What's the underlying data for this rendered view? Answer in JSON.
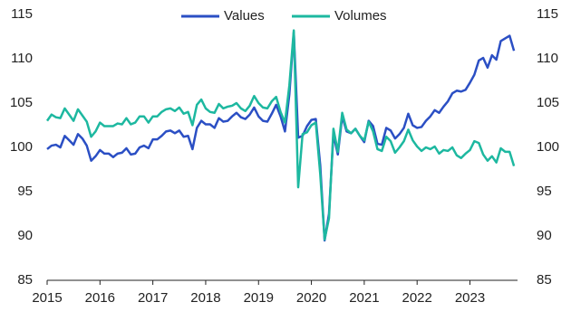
{
  "chart_data": {
    "type": "line",
    "x": [
      2015,
      2015.083,
      2015.167,
      2015.25,
      2015.333,
      2015.417,
      2015.5,
      2015.583,
      2015.667,
      2015.75,
      2015.833,
      2015.917,
      2016,
      2016.083,
      2016.167,
      2016.25,
      2016.333,
      2016.417,
      2016.5,
      2016.583,
      2016.667,
      2016.75,
      2016.833,
      2016.917,
      2017,
      2017.083,
      2017.167,
      2017.25,
      2017.333,
      2017.417,
      2017.5,
      2017.583,
      2017.667,
      2017.75,
      2017.833,
      2017.917,
      2018,
      2018.083,
      2018.167,
      2018.25,
      2018.333,
      2018.417,
      2018.5,
      2018.583,
      2018.667,
      2018.75,
      2018.833,
      2018.917,
      2019,
      2019.083,
      2019.167,
      2019.25,
      2019.333,
      2019.417,
      2019.5,
      2019.583,
      2019.667,
      2019.75,
      2019.833,
      2019.917,
      2020,
      2020.083,
      2020.167,
      2020.25,
      2020.333,
      2020.417,
      2020.5,
      2020.583,
      2020.667,
      2020.75,
      2020.833,
      2020.917,
      2021,
      2021.083,
      2021.167,
      2021.25,
      2021.333,
      2021.417,
      2021.5,
      2021.583,
      2021.667,
      2021.75,
      2021.833,
      2021.917,
      2022,
      2022.083,
      2022.167,
      2022.25,
      2022.333,
      2022.417,
      2022.5,
      2022.583,
      2022.667,
      2022.75,
      2022.833,
      2022.917,
      2023,
      2023.083,
      2023.167,
      2023.25,
      2023.333,
      2023.417,
      2023.5,
      2023.583,
      2023.667,
      2023.75,
      2023.833
    ],
    "series": [
      {
        "name": "Values",
        "color": "#2b4fc4",
        "values": [
          99.8,
          100.2,
          100.3,
          100.0,
          101.3,
          100.8,
          100.3,
          101.5,
          101.0,
          100.2,
          98.5,
          99.0,
          99.7,
          99.3,
          99.3,
          98.9,
          99.3,
          99.4,
          99.9,
          99.2,
          99.3,
          100.0,
          100.2,
          99.9,
          100.9,
          100.9,
          101.3,
          101.8,
          101.9,
          101.6,
          101.9,
          101.2,
          101.3,
          99.8,
          102.2,
          103.0,
          102.6,
          102.6,
          102.2,
          103.3,
          102.9,
          103.0,
          103.5,
          103.9,
          103.4,
          103.2,
          103.7,
          104.5,
          103.5,
          103.0,
          102.9,
          103.8,
          104.8,
          103.5,
          101.8,
          106.0,
          113.0,
          101.1,
          101.3,
          102.4,
          103.1,
          103.2,
          98.0,
          89.5,
          92.5,
          101.5,
          99.2,
          103.5,
          101.8,
          101.6,
          102.1,
          101.3,
          100.6,
          103.0,
          102.4,
          100.4,
          100.3,
          102.2,
          101.9,
          101.0,
          101.5,
          102.2,
          103.8,
          102.5,
          102.2,
          102.3,
          103.0,
          103.5,
          104.2,
          103.9,
          104.6,
          105.2,
          106.1,
          106.4,
          106.3,
          106.5,
          107.3,
          108.2,
          109.8,
          110.1,
          109.0,
          110.4,
          109.9,
          112.0,
          112.3,
          112.6,
          110.9
        ]
      },
      {
        "name": "Volumes",
        "color": "#1db8a0",
        "values": [
          103.0,
          103.7,
          103.4,
          103.3,
          104.4,
          103.7,
          103.0,
          104.3,
          103.6,
          102.9,
          101.2,
          101.8,
          102.8,
          102.4,
          102.4,
          102.4,
          102.7,
          102.6,
          103.3,
          102.6,
          102.8,
          103.5,
          103.5,
          102.8,
          103.5,
          103.5,
          104.0,
          104.3,
          104.4,
          104.1,
          104.5,
          103.8,
          104.0,
          102.5,
          104.8,
          105.4,
          104.4,
          104.0,
          103.9,
          104.9,
          104.4,
          104.6,
          104.7,
          105.0,
          104.4,
          104.1,
          104.7,
          105.8,
          105.0,
          104.5,
          104.4,
          105.2,
          105.7,
          104.0,
          102.8,
          107.0,
          113.2,
          95.5,
          101.5,
          101.7,
          102.5,
          102.8,
          97.0,
          89.6,
          92.0,
          102.1,
          99.5,
          103.9,
          102.0,
          101.6,
          102.1,
          101.3,
          100.8,
          102.9,
          101.8,
          99.8,
          99.6,
          101.2,
          100.7,
          99.4,
          100.0,
          100.7,
          102.0,
          100.8,
          100.1,
          99.6,
          100.0,
          99.8,
          100.1,
          99.3,
          99.7,
          99.6,
          100.0,
          99.1,
          98.8,
          99.3,
          99.7,
          100.7,
          100.5,
          99.2,
          98.5,
          99.0,
          98.3,
          99.9,
          99.5,
          99.5,
          97.9
        ]
      }
    ],
    "xlim": [
      2015,
      2023.9
    ],
    "xticks": [
      2015,
      2016,
      2017,
      2018,
      2019,
      2020,
      2021,
      2022,
      2023
    ],
    "ylim": [
      85,
      115
    ],
    "yticks": [
      85,
      90,
      95,
      100,
      105,
      110,
      115
    ]
  }
}
